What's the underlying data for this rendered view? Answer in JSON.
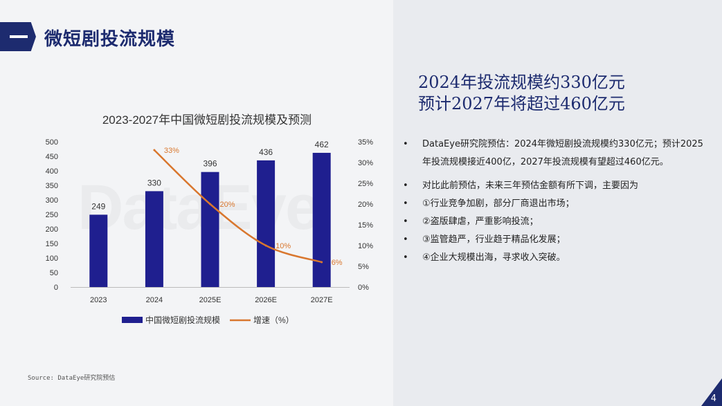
{
  "header": {
    "title": "微短剧投流规模"
  },
  "chart_data": {
    "type": "bar",
    "title": "2023-2027年中国微短剧投流规模及预测",
    "categories": [
      "2023",
      "2024",
      "2025E",
      "2026E",
      "2027E"
    ],
    "series": [
      {
        "name": "中国微短剧投流规模",
        "type": "bar",
        "axis": "left",
        "values": [
          249,
          330,
          396,
          436,
          462
        ],
        "color": "#1f1f8f"
      },
      {
        "name": "增速（%）",
        "type": "line",
        "axis": "right",
        "x": [
          "2024",
          "2025E",
          "2026E",
          "2027E"
        ],
        "values": [
          33,
          20,
          10,
          6
        ],
        "labels": [
          "33%",
          "20%",
          "10%",
          "6%"
        ],
        "color": "#d9772e"
      }
    ],
    "y_left": {
      "min": 0,
      "max": 500,
      "ticks": [
        "500",
        "450",
        "400",
        "350",
        "300",
        "250",
        "200",
        "150",
        "100",
        "50",
        "0"
      ]
    },
    "y_right": {
      "min": 0,
      "max": 35,
      "ticks": [
        "35%",
        "30%",
        "25%",
        "20%",
        "15%",
        "10%",
        "5%",
        "0%"
      ]
    },
    "bar_labels": [
      "249",
      "330",
      "396",
      "436",
      "462"
    ],
    "legend_position": "bottom",
    "grid": false
  },
  "watermark": "DataEye",
  "headline": {
    "line1": "2024年投流规模约330亿元",
    "line2": "预计2027年将超过460亿元"
  },
  "bullets": [
    {
      "dot": "•",
      "text": "DataEye研究院预估：2024年微短剧投流规模约330亿元；预计2025年投流规模接近400亿，2027年投流规模有望超过460亿元。"
    },
    {
      "dot": "•",
      "text": "对比此前预估，未来三年预估金额有所下调，主要因为"
    },
    {
      "dot": "•",
      "text": "①行业竞争加剧，部分厂商退出市场；"
    },
    {
      "dot": "•",
      "text": "②盗版肆虐，严重影响投流；"
    },
    {
      "dot": "•",
      "text": "③监管趋严，行业趋于精品化发展；"
    },
    {
      "dot": "•",
      "text": "④企业大规模出海，寻求收入突破。"
    }
  ],
  "source": "Source: DataEye研究院预估",
  "page_number": "4",
  "colors": {
    "accent": "#1d2b6f",
    "bar": "#1f1f8f",
    "line": "#d9772e"
  }
}
